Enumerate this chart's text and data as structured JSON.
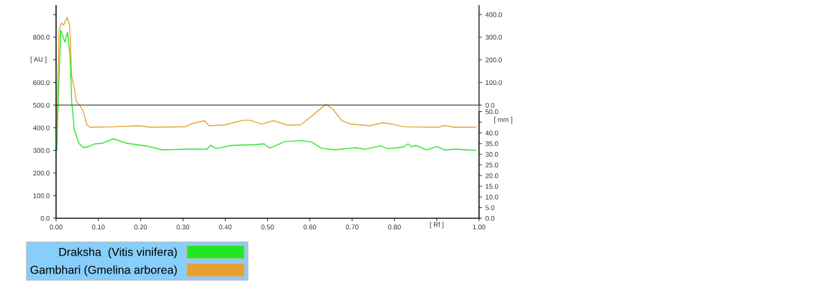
{
  "chart_data": {
    "type": "line",
    "xlabel": "[ Rf ]",
    "ylabel": "[ AU ]",
    "y2label": "[ mm ]",
    "xlim": [
      0,
      1
    ],
    "xticks": [
      {
        "value": 0,
        "label": "0.00"
      },
      {
        "value": 0.1,
        "label": "0.10"
      },
      {
        "value": 0.2,
        "label": "0.20"
      },
      {
        "value": 0.3,
        "label": "0.30"
      },
      {
        "value": 0.4,
        "label": "0.40"
      },
      {
        "value": 0.5,
        "label": "0.50"
      },
      {
        "value": 0.6,
        "label": "0.60"
      },
      {
        "value": 0.7,
        "label": "0.70"
      },
      {
        "value": 0.8,
        "label": "0.80"
      },
      {
        "value": 0.9,
        "label": null
      },
      {
        "value": 1,
        "label": "1.00"
      }
    ],
    "ylim": [
      0,
      940
    ],
    "yticks": [
      {
        "value": 0,
        "label": "0.0"
      },
      {
        "value": 100,
        "label": "100.0"
      },
      {
        "value": 200,
        "label": "200.0"
      },
      {
        "value": 300,
        "label": "300.0"
      },
      {
        "value": 400,
        "label": "400.0"
      },
      {
        "value": 500,
        "label": "500.0"
      },
      {
        "value": 600,
        "label": "600.0"
      },
      {
        "value": 700,
        "label": null
      },
      {
        "value": 800,
        "label": "800.0"
      },
      {
        "value": 900,
        "label": null
      }
    ],
    "y2lim": [
      0,
      99.7
    ],
    "y2ticks": [
      {
        "value": 0,
        "label": "0.0"
      },
      {
        "value": 5,
        "label": "5.0"
      },
      {
        "value": 10,
        "label": "10.0"
      },
      {
        "value": 15,
        "label": "15.0"
      },
      {
        "value": 20,
        "label": "20.0"
      },
      {
        "value": 25,
        "label": "25.0"
      },
      {
        "value": 30,
        "label": "30.0"
      },
      {
        "value": 35,
        "label": "35.0"
      },
      {
        "value": 40,
        "label": "40.0"
      },
      {
        "value": 45,
        "label": null
      },
      {
        "value": 50,
        "label": "50.0"
      }
    ],
    "y3lim": [
      -500,
      440
    ],
    "y3ticks": [
      {
        "value": 0,
        "label": "0.0"
      },
      {
        "value": 100,
        "label": "100.0"
      },
      {
        "value": 200,
        "label": "200.0"
      },
      {
        "value": 300,
        "label": "300.0"
      },
      {
        "value": 400,
        "label": "400.0"
      }
    ],
    "ref_lines": [
      {
        "axis": "y",
        "value": 500,
        "color": "#404040"
      }
    ],
    "grid": false,
    "legend": "bottom",
    "marker": "none",
    "line_style": "solid",
    "series": [
      {
        "name": "Draksha  (Vitis vinifera)",
        "color": "#22e622",
        "x": [
          0.002,
          0.004,
          0.011,
          0.021,
          0.027,
          0.033,
          0.037,
          0.043,
          0.054,
          0.064,
          0.075,
          0.092,
          0.108,
          0.136,
          0.168,
          0.218,
          0.251,
          0.305,
          0.357,
          0.365,
          0.379,
          0.415,
          0.47,
          0.492,
          0.503,
          0.508,
          0.541,
          0.584,
          0.605,
          0.627,
          0.659,
          0.708,
          0.73,
          0.768,
          0.784,
          0.822,
          0.832,
          0.841,
          0.851,
          0.876,
          0.9,
          0.919,
          0.946,
          0.992
        ],
        "values": [
          300,
          453,
          832,
          778,
          822,
          720,
          515,
          392,
          331,
          313,
          315,
          329,
          331,
          351,
          331,
          318,
          302,
          305,
          305,
          323,
          308,
          322,
          325,
          329,
          312,
          312,
          339,
          343,
          336,
          310,
          302,
          312,
          305,
          320,
          307,
          315,
          329,
          315,
          322,
          302,
          317,
          302,
          305,
          300
        ]
      },
      {
        "name": "Gambhari (Gmelina arborea)",
        "color": "#e8a030",
        "x": [
          0.002,
          0.003,
          0.007,
          0.013,
          0.018,
          0.026,
          0.032,
          0.037,
          0.043,
          0.048,
          0.056,
          0.064,
          0.073,
          0.081,
          0.136,
          0.196,
          0.223,
          0.305,
          0.321,
          0.351,
          0.362,
          0.398,
          0.442,
          0.458,
          0.486,
          0.514,
          0.546,
          0.578,
          0.605,
          0.638,
          0.654,
          0.676,
          0.697,
          0.741,
          0.773,
          0.795,
          0.822,
          0.903,
          0.919,
          0.941,
          0.992
        ],
        "values": [
          402,
          515,
          832,
          863,
          853,
          888,
          853,
          627,
          576,
          515,
          499,
          474,
          412,
          402,
          404,
          409,
          402,
          404,
          418,
          431,
          409,
          412,
          433,
          433,
          416,
          431,
          412,
          412,
          452,
          504,
          483,
          431,
          416,
          409,
          422,
          416,
          404,
          402,
          410,
          402,
          402
        ]
      }
    ]
  }
}
